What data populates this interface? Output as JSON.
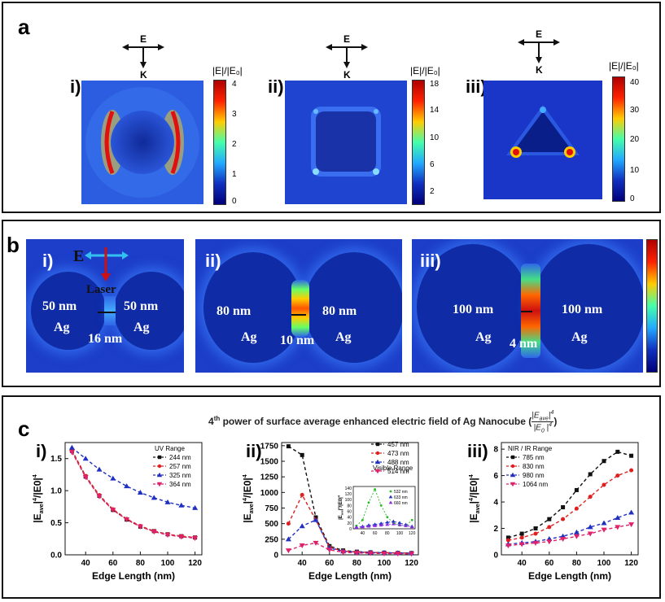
{
  "panel_a": {
    "label": "a",
    "sub": [
      {
        "roman": "i)",
        "bar_title": "|E|/|E₀|",
        "ticks": [
          "4",
          "3",
          "2",
          "1",
          "0"
        ]
      },
      {
        "roman": "ii)",
        "bar_title": "|E|/|E₀|",
        "ticks": [
          "18",
          "14",
          "10",
          "6",
          "2"
        ]
      },
      {
        "roman": "iii)",
        "bar_title": "|E|/|E₀|",
        "ticks": [
          "40",
          "30",
          "20",
          "10",
          "0"
        ]
      }
    ],
    "arrow_e": "E",
    "arrow_k": "K"
  },
  "panel_b": {
    "label": "b",
    "sub": [
      {
        "roman": "i)",
        "left": "50 nm",
        "right": "50 nm",
        "metal": "Ag",
        "gap": "16 nm"
      },
      {
        "roman": "ii)",
        "left": "80 nm",
        "right": "80 nm",
        "metal": "Ag",
        "gap": "10 nm"
      },
      {
        "roman": "iii)",
        "left": "100 nm",
        "right": "100 nm",
        "metal": "Ag",
        "gap": "4 nm"
      }
    ],
    "e_label": "E",
    "laser_label": "Laser"
  },
  "panel_c": {
    "label": "c",
    "title_main": "power of surface average enhanced electric field of Ag Nanocube",
    "title_prefix": "4",
    "title_sup": "th",
    "title_frac_num": "|E",
    "title_frac_den": "|E",
    "roman": [
      "i)",
      "ii)",
      "iii)"
    ],
    "xlabel": "Edge Length (nm)",
    "ylabel": "|E",
    "inset_ylabel": "|E"
  },
  "chart_data": [
    {
      "type": "line",
      "legend_title": "UV Range",
      "xlabel": "Edge Length (nm)",
      "ylabel": "|Eave|4/|E0|4",
      "xlim": [
        25,
        125
      ],
      "ylim": [
        0,
        1.75
      ],
      "xticks": [
        "40",
        "60",
        "80",
        "100",
        "120"
      ],
      "yticks": [
        "0.0",
        "0.5",
        "1.0",
        "1.5"
      ],
      "x": [
        30,
        40,
        50,
        60,
        70,
        80,
        90,
        100,
        110,
        120
      ],
      "series": [
        {
          "name": "244 nm",
          "color": "#111111",
          "marker": "square",
          "values": [
            1.62,
            1.22,
            0.92,
            0.7,
            0.55,
            0.44,
            0.37,
            0.32,
            0.29,
            0.27
          ]
        },
        {
          "name": "257 nm",
          "color": "#e02020",
          "marker": "circle",
          "values": [
            1.63,
            1.23,
            0.93,
            0.71,
            0.56,
            0.45,
            0.37,
            0.32,
            0.29,
            0.27
          ]
        },
        {
          "name": "325 nm",
          "color": "#2030c0",
          "marker": "triangle",
          "values": [
            1.67,
            1.5,
            1.33,
            1.19,
            1.07,
            0.97,
            0.89,
            0.82,
            0.77,
            0.73
          ]
        },
        {
          "name": "364 nm",
          "color": "#e0206a",
          "marker": "triangle-down",
          "values": [
            1.6,
            1.21,
            0.91,
            0.7,
            0.55,
            0.44,
            0.36,
            0.31,
            0.28,
            0.26
          ]
        }
      ]
    },
    {
      "type": "line",
      "legend_title": "Visible Range",
      "xlabel": "Edge Length (nm)",
      "ylabel": "|Eave|4/|E0|4",
      "xlim": [
        25,
        125
      ],
      "ylim": [
        0,
        1800
      ],
      "xticks": [
        "40",
        "60",
        "80",
        "100",
        "120"
      ],
      "yticks": [
        "0",
        "250",
        "500",
        "750",
        "1000",
        "1250",
        "1500",
        "1750"
      ],
      "x": [
        30,
        40,
        50,
        60,
        70,
        80,
        90,
        100,
        110,
        120
      ],
      "series": [
        {
          "name": "457 nm",
          "color": "#111111",
          "marker": "square",
          "values": [
            1740,
            1600,
            600,
            140,
            70,
            50,
            40,
            35,
            30,
            28
          ]
        },
        {
          "name": "473 nm",
          "color": "#e02020",
          "marker": "circle",
          "values": [
            500,
            960,
            560,
            120,
            60,
            45,
            38,
            33,
            30,
            27
          ]
        },
        {
          "name": "488 nm",
          "color": "#2030c0",
          "marker": "triangle",
          "values": [
            250,
            460,
            560,
            110,
            55,
            42,
            36,
            32,
            28,
            25
          ]
        },
        {
          "name": "514 nm",
          "color": "#e0206a",
          "marker": "triangle-down",
          "values": [
            70,
            150,
            190,
            80,
            40,
            30,
            25,
            20,
            18,
            15
          ]
        }
      ],
      "inset": {
        "ylabel": "|Eave|4/|E0|4",
        "xticks": [
          "40",
          "60",
          "80",
          "100",
          "120"
        ],
        "yticks": [
          "0",
          "20",
          "40",
          "60",
          "80",
          "100",
          "120",
          "140"
        ],
        "ylim": [
          0,
          145
        ],
        "x": [
          30,
          40,
          50,
          60,
          70,
          80,
          90,
          100,
          110,
          120
        ],
        "series": [
          {
            "name": "532 nm",
            "color": "#22bb22",
            "marker": "circle",
            "values": [
              10,
              30,
              90,
              135,
              80,
              40,
              20,
              12,
              10,
              30
            ]
          },
          {
            "name": "633 nm",
            "color": "#2030c0",
            "marker": "triangle",
            "values": [
              5,
              8,
              12,
              15,
              18,
              22,
              25,
              20,
              14,
              8
            ]
          },
          {
            "name": "660 nm",
            "color": "#8a2be2",
            "marker": "triangle",
            "values": [
              4,
              6,
              8,
              10,
              12,
              14,
              16,
              13,
              10,
              6
            ]
          }
        ]
      }
    },
    {
      "type": "line",
      "legend_title": "NIR / IR Range",
      "xlabel": "Edge Length (nm)",
      "ylabel": "|Eave|4/|E0|4",
      "xlim": [
        25,
        125
      ],
      "ylim": [
        0,
        8.5
      ],
      "xticks": [
        "40",
        "60",
        "80",
        "100",
        "120"
      ],
      "yticks": [
        "0",
        "2",
        "4",
        "6",
        "8"
      ],
      "x": [
        30,
        40,
        50,
        60,
        70,
        80,
        90,
        100,
        110,
        120
      ],
      "series": [
        {
          "name": "785 nm",
          "color": "#111111",
          "marker": "square",
          "values": [
            1.3,
            1.6,
            2.0,
            2.7,
            3.6,
            4.9,
            6.1,
            7.1,
            7.8,
            7.5
          ]
        },
        {
          "name": "830 nm",
          "color": "#e02020",
          "marker": "circle",
          "values": [
            1.1,
            1.3,
            1.6,
            2.1,
            2.7,
            3.5,
            4.4,
            5.3,
            6.0,
            6.4
          ]
        },
        {
          "name": "980 nm",
          "color": "#2030c0",
          "marker": "triangle",
          "values": [
            0.8,
            0.9,
            1.0,
            1.2,
            1.4,
            1.7,
            2.1,
            2.4,
            2.8,
            3.2
          ]
        },
        {
          "name": "1064 nm",
          "color": "#e0206a",
          "marker": "triangle-down",
          "values": [
            0.7,
            0.8,
            0.9,
            1.0,
            1.2,
            1.4,
            1.6,
            1.9,
            2.1,
            2.3
          ]
        }
      ]
    }
  ]
}
